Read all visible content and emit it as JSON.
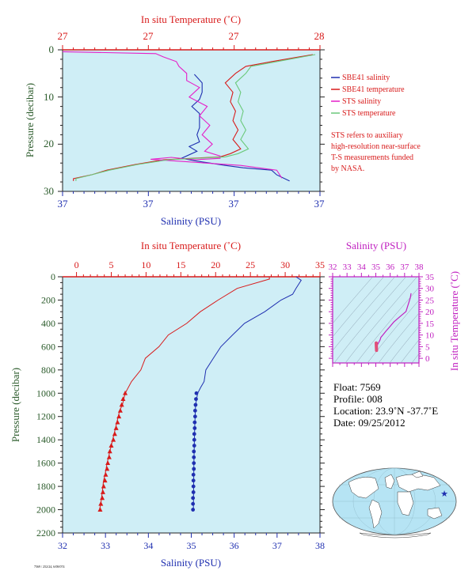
{
  "colors": {
    "plot_bg": "#cfeef6",
    "temperature": "#d81b1b",
    "salinity": "#1f2fb0",
    "sts_salinity": "#e61ec8",
    "sts_temperature": "#6ac97a",
    "pressure_axis": "#2a5a2a",
    "note": "#d81b1b",
    "theta_s": "#c020c0",
    "map_land": "#ffffff",
    "map_ocean": "#b6e4f4"
  },
  "chart_data": [
    {
      "id": "top-panel",
      "type": "line",
      "top_axis_label": "In situ Temperature (˚C)",
      "top_ticks": [
        "27",
        "27",
        "27",
        "28"
      ],
      "bottom_axis_label": "Salinity (PSU)",
      "bottom_ticks": [
        "37",
        "37",
        "37",
        "37"
      ],
      "ylabel": "Pressure (decibar)",
      "y_ticks": [
        "0",
        "10",
        "20",
        "30"
      ],
      "ylim": [
        0,
        30
      ],
      "legend_position": "right",
      "legend": [
        {
          "label": "SBE41 salinity",
          "color": "#1f2fb0"
        },
        {
          "label": "SBE41 temperature",
          "color": "#d81b1b"
        },
        {
          "label": "STS salinity",
          "color": "#e61ec8"
        },
        {
          "label": "STS temperature",
          "color": "#6ac97a"
        }
      ],
      "note_lines": [
        "STS refers to auxiliary",
        "high-resolution near-surface",
        "T-S measurements funded",
        "by NASA."
      ],
      "series": [
        {
          "name": "SBE41 salinity",
          "color": "#1f2fb0",
          "x": [
            0.52,
            0.53,
            0.55,
            0.52,
            0.51,
            0.52,
            0.54,
            0.52,
            0.53,
            0.52,
            0.5,
            0.51,
            0.47,
            0.5,
            0.58,
            0.62,
            0.71,
            0.8,
            0.84,
            0.87
          ],
          "y": [
            5.2,
            7,
            9,
            10.5,
            12,
            13.5,
            15,
            16.5,
            18,
            19.5,
            20.5,
            21.5,
            23,
            23.5,
            24,
            24.5,
            25,
            25.5,
            26.5,
            27.8
          ]
        },
        {
          "name": "SBE41 temperature",
          "color": "#d81b1b",
          "x": [
            0.98,
            0.8,
            0.72,
            0.66,
            0.64,
            0.65,
            0.66,
            0.66,
            0.67,
            0.67,
            0.67,
            0.68,
            0.66,
            0.6,
            0.4,
            0.27,
            0.18,
            0.1,
            0.05,
            0.03
          ],
          "y": [
            1,
            2.5,
            3.5,
            5,
            7,
            9,
            11,
            13,
            15,
            17,
            19,
            21,
            22,
            22.7,
            23.3,
            24.3,
            25.5,
            26.5,
            27.3,
            27.8
          ]
        },
        {
          "name": "STS salinity",
          "color": "#e61ec8",
          "x": [
            0.0,
            0.35,
            0.4,
            0.43,
            0.46,
            0.47,
            0.49,
            0.52,
            0.5,
            0.55,
            0.54,
            0.56,
            0.55,
            0.57,
            0.56,
            0.6,
            0.62,
            0.5,
            0.43,
            0.33,
            0.7,
            0.82,
            0.86
          ],
          "y": [
            0.4,
            0.8,
            1.5,
            2.5,
            3.5,
            5,
            6.5,
            8,
            10,
            12,
            14,
            16,
            18,
            20,
            21.5,
            22.5,
            23,
            23.3,
            22.8,
            23.2,
            24.5,
            25.5,
            27.2
          ]
        },
        {
          "name": "STS temperature",
          "color": "#6ac97a",
          "x": [
            0.99,
            0.82,
            0.74,
            0.7,
            0.68,
            0.68,
            0.69,
            0.69,
            0.7,
            0.7,
            0.7,
            0.71,
            0.69,
            0.62,
            0.42,
            0.28,
            0.19,
            0.1,
            0.06,
            0.04
          ],
          "y": [
            1,
            2.5,
            3.5,
            5,
            7,
            9,
            11,
            13,
            15,
            17,
            19,
            21,
            22,
            22.7,
            23.3,
            24.3,
            25.5,
            26.5,
            27.3,
            27.8
          ]
        }
      ]
    },
    {
      "id": "bottom-panel",
      "type": "line",
      "top_axis_label": "In situ Temperature (˚C)",
      "temperature_ticks": [
        0,
        5,
        10,
        15,
        20,
        25,
        30,
        35
      ],
      "temperature_range": [
        -2,
        35
      ],
      "bottom_axis_label": "Salinity (PSU)",
      "salinity_ticks": [
        32,
        33,
        34,
        35,
        36,
        37,
        38
      ],
      "salinity_range": [
        32,
        38
      ],
      "ylabel": "Pressure (decibar)",
      "pressure_ticks": [
        0,
        200,
        400,
        600,
        800,
        1000,
        1200,
        1400,
        1600,
        1800,
        2000,
        2200
      ],
      "ylim": [
        0,
        2200
      ],
      "series": [
        {
          "name": "Temperature",
          "color": "#d81b1b",
          "axis": "temperature",
          "values": [
            27.9,
            27.5,
            23.3,
            20.1,
            18.0,
            15.6,
            13.4,
            11.6,
            10.1,
            9.0,
            7.9,
            7.0,
            6.6,
            6.2,
            6.0,
            5.8,
            5.6,
            5.2,
            4.8,
            4.6,
            4.4,
            4.1,
            3.9,
            3.8,
            3.7,
            3.6,
            3.5,
            3.3
          ],
          "pressure": [
            0,
            20,
            100,
            200,
            300,
            400,
            500,
            600,
            700,
            800,
            900,
            1000,
            1100,
            1150,
            1200,
            1250,
            1300,
            1400,
            1500,
            1550,
            1600,
            1700,
            1750,
            1800,
            1850,
            1900,
            1950,
            2000
          ],
          "marker_pressure": [
            1000,
            1050,
            1100,
            1150,
            1200,
            1250,
            1300,
            1350,
            1400,
            1450,
            1500,
            1550,
            1600,
            1650,
            1700,
            1750,
            1800,
            1850,
            1900,
            1950,
            2000
          ],
          "marker_values": [
            7.0,
            6.7,
            6.5,
            6.3,
            6.1,
            5.9,
            5.7,
            5.5,
            5.3,
            5.0,
            4.8,
            4.7,
            4.5,
            4.4,
            4.2,
            4.1,
            3.9,
            3.8,
            3.7,
            3.5,
            3.4
          ]
        },
        {
          "name": "Salinity",
          "color": "#1f2fb0",
          "axis": "salinity",
          "values": [
            37.45,
            37.55,
            37.45,
            37.35,
            37.1,
            36.7,
            36.25,
            35.95,
            35.7,
            35.5,
            35.35,
            35.3,
            35.22,
            35.15,
            35.1,
            35.08,
            35.06,
            35.05
          ],
          "pressure": [
            0,
            30,
            100,
            150,
            200,
            300,
            400,
            500,
            600,
            700,
            800,
            900,
            950,
            1000,
            1100,
            1300,
            1600,
            2000
          ],
          "marker_pressure": [
            1000,
            1050,
            1100,
            1150,
            1200,
            1250,
            1300,
            1350,
            1400,
            1450,
            1500,
            1550,
            1600,
            1650,
            1700,
            1750,
            1800,
            1850,
            1900,
            1950,
            2000
          ],
          "marker_values": [
            35.12,
            35.11,
            35.1,
            35.09,
            35.09,
            35.08,
            35.08,
            35.07,
            35.07,
            35.07,
            35.06,
            35.06,
            35.06,
            35.06,
            35.05,
            35.05,
            35.05,
            35.05,
            35.04,
            35.04,
            35.04
          ]
        }
      ]
    },
    {
      "id": "theta-s-inset",
      "type": "line",
      "top_axis_label": "Salinity (PSU)",
      "salinity_ticks": [
        32,
        33,
        34,
        35,
        36,
        37,
        38
      ],
      "salinity_range": [
        32,
        38
      ],
      "right_axis_label": "In situ Temperature (˚C)",
      "temperature_ticks": [
        0,
        5,
        10,
        15,
        20,
        25,
        30,
        35
      ],
      "temperature_range": [
        -2,
        35
      ],
      "series": [
        {
          "name": "T-S",
          "color": "#c020c0",
          "salinity": [
            37.45,
            37.4,
            37.1,
            36.7,
            36.25,
            35.95,
            35.7,
            35.5,
            35.35,
            35.3,
            35.22,
            35.15,
            35.1,
            35.05,
            35.04
          ],
          "temperature": [
            27.9,
            26.0,
            20.1,
            18.0,
            15.6,
            13.4,
            11.6,
            10.1,
            9.0,
            7.9,
            7.0,
            6.2,
            5.6,
            4.4,
            3.4
          ]
        }
      ]
    }
  ],
  "float_info": {
    "float": "Float:  7569",
    "profile": "Profile:  008",
    "location": "Location:  23.9˚N  -37.7˚E",
    "date": "Date:  09/25/2012"
  },
  "map": {
    "marker_lon": -37.7,
    "marker_lat": 23.9,
    "marker_color": "#1f2fb0"
  },
  "footer_code": "7569 / 252/24, 6/08/074"
}
